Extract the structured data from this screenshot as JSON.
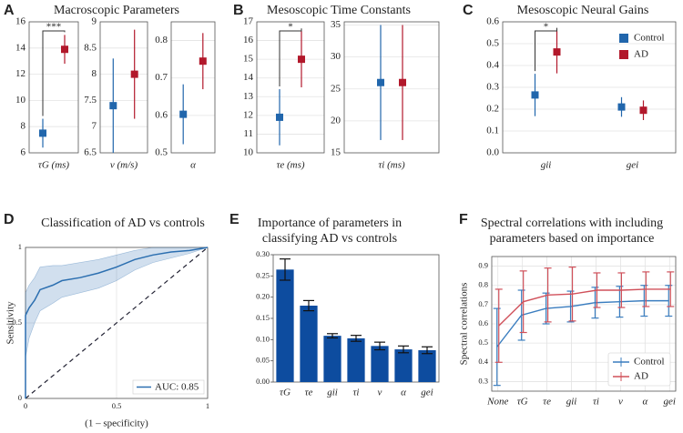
{
  "chart_data": [
    {
      "type": "errorbar",
      "label": "A",
      "title": "Macroscopic Parameters",
      "grid": true,
      "subplots": [
        {
          "categories": [
            "τG (ms)"
          ],
          "ylim": [
            6,
            16
          ],
          "yticks": [
            6,
            8,
            10,
            12,
            14,
            16
          ],
          "significance": "***",
          "series": [
            {
              "color": "#2166ac",
              "values": [
                7.5
              ],
              "errors": [
                1.1
              ]
            },
            {
              "color": "#b2182b",
              "values": [
                13.9
              ],
              "errors": [
                1.1
              ]
            }
          ]
        },
        {
          "categories": [
            "v (m/s)"
          ],
          "ylim": [
            6.5,
            9
          ],
          "yticks": [
            6.5,
            7,
            7.5,
            8,
            8.5,
            9
          ],
          "series": [
            {
              "color": "#2166ac",
              "values": [
                7.4
              ],
              "errors": [
                0.9
              ]
            },
            {
              "color": "#b2182b",
              "values": [
                8.0
              ],
              "errors": [
                0.85
              ]
            }
          ]
        },
        {
          "categories": [
            "α"
          ],
          "ylim": [
            0.5,
            0.85
          ],
          "yticks": [
            0.5,
            0.6,
            0.7,
            0.8
          ],
          "series": [
            {
              "color": "#2166ac",
              "values": [
                0.603
              ],
              "errors": [
                0.08
              ]
            },
            {
              "color": "#b2182b",
              "values": [
                0.745
              ],
              "errors": [
                0.075
              ]
            }
          ]
        }
      ]
    },
    {
      "type": "errorbar",
      "label": "B",
      "title": "Mesoscopic Time Constants",
      "grid": true,
      "subplots": [
        {
          "categories": [
            "τe (ms)"
          ],
          "ylim": [
            10,
            17
          ],
          "yticks": [
            10,
            11,
            12,
            13,
            14,
            15,
            16,
            17
          ],
          "significance": "*",
          "series": [
            {
              "color": "#2166ac",
              "values": [
                11.9
              ],
              "errors": [
                1.5
              ]
            },
            {
              "color": "#b2182b",
              "values": [
                15.0
              ],
              "errors": [
                1.5
              ]
            }
          ]
        },
        {
          "categories": [
            "τi (ms)"
          ],
          "ylim": [
            15,
            35.5
          ],
          "yticks": [
            15,
            20,
            25,
            30,
            35
          ],
          "series": [
            {
              "color": "#2166ac",
              "values": [
                26
              ],
              "errors": [
                9
              ]
            },
            {
              "color": "#b2182b",
              "values": [
                26
              ],
              "errors": [
                9
              ]
            }
          ]
        }
      ]
    },
    {
      "type": "errorbar",
      "label": "C",
      "title": "Mesoscopic Neural Gains",
      "grid": true,
      "subplots": [
        {
          "categories": [
            "gii",
            "gei"
          ],
          "ylim": [
            0,
            0.6
          ],
          "yticks": [
            {
              "value": 0,
              "label": "0.0"
            },
            0.1,
            0.2,
            0.3,
            0.4,
            0.5,
            0.6
          ],
          "significance": "*",
          "legend": "upper right",
          "series": [
            {
              "name": "Control",
              "color": "#2166ac",
              "values": [
                0.265,
                0.21
              ],
              "errors": [
                0.097,
                0.045
              ]
            },
            {
              "name": "AD",
              "color": "#b2182b",
              "values": [
                0.462,
                0.195
              ],
              "errors": [
                0.098,
                0.045
              ]
            }
          ]
        }
      ]
    },
    {
      "type": "roc",
      "label": "D",
      "title": "Classification of AD vs controls",
      "xlabel": "(1 – specificity)",
      "ylabel": "Sensitivity",
      "xlim": [
        0,
        1
      ],
      "ylim": [
        0,
        1
      ],
      "xticks": [
        0,
        0.5,
        1
      ],
      "yticks": [
        0,
        0.5,
        1
      ],
      "grid": true,
      "legend": "lower right",
      "series": [
        {
          "name": "AUC: 0.85",
          "color": "#2c6fb0",
          "x": [
            0,
            0,
            0.02,
            0.05,
            0.08,
            0.15,
            0.2,
            0.3,
            0.4,
            0.5,
            0.6,
            0.7,
            0.8,
            0.9,
            1
          ],
          "values": [
            0,
            0.55,
            0.6,
            0.65,
            0.72,
            0.75,
            0.78,
            0.8,
            0.83,
            0.87,
            0.92,
            0.95,
            0.97,
            0.98,
            1
          ],
          "lower": [
            0,
            0.27,
            0.4,
            0.5,
            0.58,
            0.63,
            0.67,
            0.7,
            0.73,
            0.78,
            0.85,
            0.9,
            0.93,
            0.96,
            1
          ],
          "upper": [
            0,
            0.7,
            0.75,
            0.8,
            0.87,
            0.88,
            0.88,
            0.9,
            0.92,
            0.95,
            0.98,
            1,
            1,
            1,
            1
          ]
        }
      ]
    },
    {
      "type": "bar",
      "label": "E",
      "title": [
        "Importance of parameters in",
        "classifying AD vs controls"
      ],
      "categories": [
        "τG",
        "τe",
        "gii",
        "τi",
        "v",
        "α",
        "gei"
      ],
      "values": [
        0.265,
        0.18,
        0.109,
        0.103,
        0.085,
        0.077,
        0.075
      ],
      "errors": [
        0.025,
        0.012,
        0.005,
        0.007,
        0.009,
        0.008,
        0.008
      ],
      "color": "#0d4c9f",
      "ylim": [
        0,
        0.3
      ],
      "yticks": [
        {
          "value": 0,
          "label": "0.00"
        },
        {
          "value": 0.05,
          "label": "0.05"
        },
        {
          "value": 0.1,
          "label": "0.10"
        },
        {
          "value": 0.15,
          "label": "0.15"
        },
        {
          "value": 0.2,
          "label": "0.20"
        },
        {
          "value": 0.25,
          "label": "0.25"
        },
        {
          "value": 0.3,
          "label": "0.30"
        }
      ]
    },
    {
      "type": "line",
      "label": "F",
      "title": [
        "Spectral correlations with including",
        "parameters based on importance"
      ],
      "ylabel": "Spectral correlations",
      "categories": [
        "None",
        "τG",
        "τe",
        "gii",
        "τi",
        "v",
        "α",
        "gei"
      ],
      "ylim": [
        0.25,
        0.95
      ],
      "yticks": [
        0.3,
        0.4,
        0.5,
        0.6,
        0.7,
        0.8,
        0.9
      ],
      "grid": true,
      "legend": "lower right",
      "series": [
        {
          "name": "Control",
          "color": "#3a7dbf",
          "values": [
            0.48,
            0.645,
            0.68,
            0.69,
            0.71,
            0.715,
            0.72,
            0.72
          ],
          "errors": [
            0.2,
            0.13,
            0.08,
            0.08,
            0.08,
            0.08,
            0.08,
            0.08
          ]
        },
        {
          "name": "AD",
          "color": "#d0505a",
          "values": [
            0.59,
            0.715,
            0.75,
            0.755,
            0.775,
            0.775,
            0.78,
            0.78
          ],
          "errors": [
            0.19,
            0.16,
            0.14,
            0.14,
            0.09,
            0.09,
            0.09,
            0.09
          ]
        }
      ]
    }
  ]
}
